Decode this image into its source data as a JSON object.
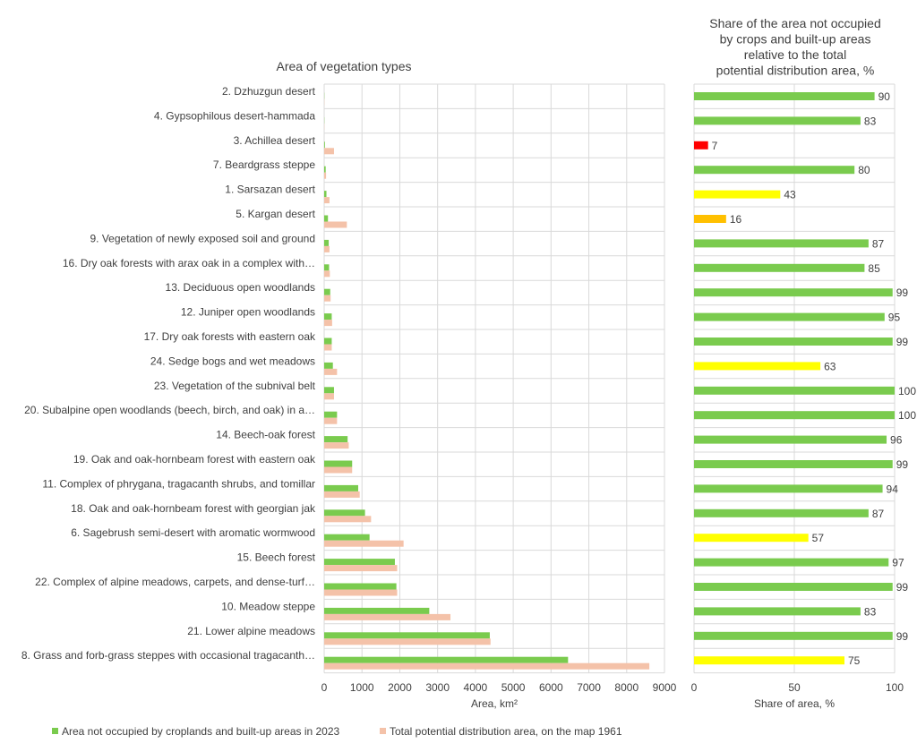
{
  "chart_data": [
    {
      "type": "bar",
      "orientation": "horizontal",
      "title": "Area of vegetation types",
      "xlabel": "Area, km²",
      "xlim": [
        0,
        9000
      ],
      "xticks": [
        "0",
        "1000",
        "2000",
        "3000",
        "4000",
        "5000",
        "6000",
        "7000",
        "8000",
        "9000"
      ],
      "grid": true,
      "legend_position": "bottom",
      "categories": [
        "2. Dzhuzgun desert",
        "4. Gypsophilous desert-hammada",
        "3.  Achillea desert",
        "7. Beardgrass steppe",
        "1. Sarsazan desert",
        "5. Kargan desert",
        "9. Vegetation of newly exposed soil and ground",
        "16.  Dry oak forests with arax oak in a complex with…",
        "13. Deciduous open woodlands",
        "12. Juniper open woodlands",
        "17.  Dry oak forests with eastern oak",
        "24. Sedge bogs and wet meadows",
        "23. Vegetation of the subnival belt",
        "20. Subalpine open woodlands (beech, birch, and oak) in a…",
        "14. Beech-oak forest",
        "19. Oak and oak-hornbeam forest with eastern oak",
        "11. Complex of phrygana, tragacanth shrubs, and tomillar",
        "18. Oak and oak-hornbeam forest with georgian jak",
        "6. Sagebrush semi-desert with aromatic wormwood",
        "15.  Beech forest",
        "22. Complex of alpine meadows, carpets, and dense-turf…",
        "10. Meadow steppe",
        "21. Lower alpine meadows",
        "8. Grass and forb-grass steppes with occasional tragacanth…"
      ],
      "series": [
        {
          "name": "Area not occupied by croplands and built-up areas in 2023",
          "color": "#7ACB4E",
          "values": [
            5,
            5,
            20,
            40,
            60,
            100,
            120,
            130,
            160,
            200,
            200,
            230,
            260,
            340,
            620,
            740,
            900,
            1080,
            1200,
            1870,
            1910,
            2780,
            4380,
            6450
          ]
        },
        {
          "name": "Total potential distribution area, on the map 1961",
          "color": "#F4C2A9",
          "values": [
            5,
            5,
            260,
            50,
            140,
            600,
            140,
            150,
            170,
            210,
            200,
            340,
            260,
            340,
            650,
            740,
            940,
            1240,
            2100,
            1930,
            1930,
            3340,
            4400,
            8600
          ]
        }
      ]
    },
    {
      "type": "bar",
      "orientation": "horizontal",
      "title": "Share of the area not occupied by crops and built-up areas relative to the total potential distribution area, %",
      "xlabel": "Share of area, %",
      "xlim": [
        0,
        100
      ],
      "xticks": [
        "0",
        "50",
        "100"
      ],
      "grid": true,
      "values": [
        90,
        83,
        7,
        80,
        43,
        16,
        87,
        85,
        99,
        95,
        99,
        63,
        100,
        100,
        96,
        99,
        94,
        87,
        57,
        97,
        99,
        83,
        99,
        75
      ],
      "data_labels": [
        "90",
        "83",
        "7",
        "80",
        "43",
        "16",
        "87",
        "85",
        "99",
        "95",
        "99",
        "63",
        "100",
        "100",
        "96",
        "99",
        "94",
        "87",
        "57",
        "97",
        "99",
        "83",
        "99",
        "75"
      ],
      "colors": [
        "#7ACB4E",
        "#7ACB4E",
        "#FF0000",
        "#7ACB4E",
        "#FFFF00",
        "#FFC000",
        "#7ACB4E",
        "#7ACB4E",
        "#7ACB4E",
        "#7ACB4E",
        "#7ACB4E",
        "#FFFF00",
        "#7ACB4E",
        "#7ACB4E",
        "#7ACB4E",
        "#7ACB4E",
        "#7ACB4E",
        "#7ACB4E",
        "#FFFF00",
        "#7ACB4E",
        "#7ACB4E",
        "#7ACB4E",
        "#7ACB4E",
        "#FFFF00"
      ]
    }
  ]
}
